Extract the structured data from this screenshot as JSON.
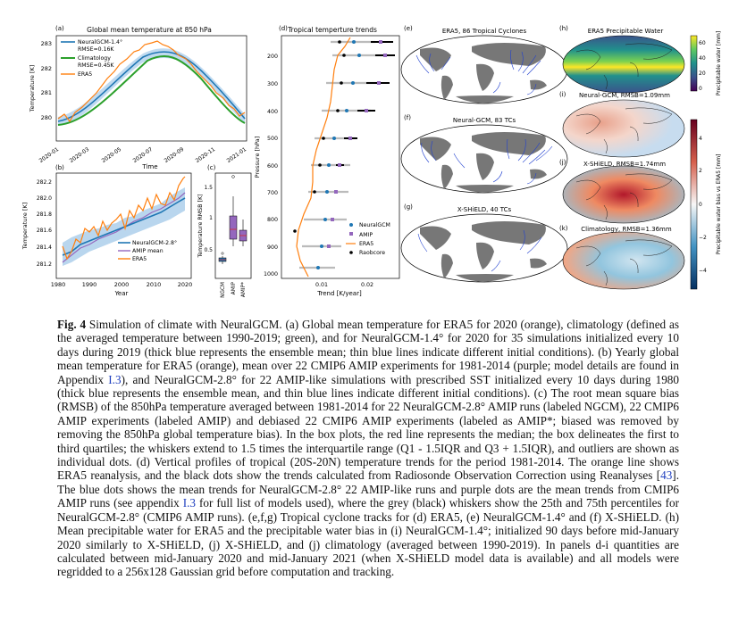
{
  "panels": {
    "a": {
      "letter": "(a)",
      "title": "Global mean temperature at 850 hPa",
      "ylabel": "Temperature [K]",
      "xlabel": "Time",
      "yticks": [
        "280",
        "281",
        "282",
        "283"
      ],
      "xticks": [
        "2020-01",
        "2020-03",
        "2020-05",
        "2020-07",
        "2020-09",
        "2020-11",
        "2021-01"
      ],
      "legend": [
        "NeuralGCM-1.4°",
        "RMSE=0.16K",
        "Climatology",
        "RMSE=0.45K",
        "ERA5"
      ]
    },
    "b": {
      "letter": "(b)",
      "ylabel": "Temperature [K]",
      "xlabel": "Year",
      "yticks": [
        "281.2",
        "281.4",
        "281.6",
        "281.8",
        "282.0",
        "282.2"
      ],
      "xticks": [
        "1980",
        "1990",
        "2000",
        "2010",
        "2020"
      ],
      "legend": [
        "NeuralGCM-2.8°",
        "AMIP mean",
        "ERA5"
      ]
    },
    "c": {
      "letter": "(c)",
      "ylabel": "Temperature RMSB [K]",
      "yticks": [
        "0.5",
        "1",
        "1.5"
      ],
      "xticks": [
        "NGCM",
        "AMIP",
        "AMIP*"
      ]
    },
    "d": {
      "letter": "(d)",
      "title": "Tropical temperture trends",
      "ylabel": "Pressure [hPa]",
      "xlabel": "Trend [K/year]",
      "yticks": [
        "200",
        "300",
        "400",
        "500",
        "600",
        "700",
        "800",
        "900",
        "1000"
      ],
      "xticks": [
        "0.01",
        "0.02"
      ],
      "legend": [
        "NeuralGCM",
        "AMIP",
        "ERA5",
        "Raobcore"
      ]
    },
    "e": {
      "letter": "(e)",
      "title": "ERA5, 86 Tropical Cyclones"
    },
    "f": {
      "letter": "(f)",
      "title": "Neural-GCM, 83 TCs"
    },
    "g": {
      "letter": "(g)",
      "title": "X-SHiELD, 40 TCs"
    },
    "h": {
      "letter": "(h)",
      "title": "ERA5 Precipitable Water",
      "cbar_label": "Precipitable water [mm]",
      "cbar_ticks": [
        "0",
        "20",
        "40",
        "60"
      ]
    },
    "i": {
      "letter": "(i)",
      "title": "Neural-GCM, RMSB=1.09mm"
    },
    "j": {
      "letter": "(j)",
      "title": "X-SHiELD, RMSB=1.74mm"
    },
    "k": {
      "letter": "(k)",
      "title": "Climatology, RMSB=1.36mm"
    },
    "bias_cbar": {
      "label": "Precipitable water bias vs ERA5 [mm]",
      "ticks": [
        "4",
        "2",
        "0",
        "−2",
        "−4"
      ]
    }
  },
  "caption": {
    "fig_label": "Fig. 4",
    "text_1": " Simulation of climate with NeuralGCM. (a) Global mean temperature for ERA5 for 2020 (orange), climatology (defined as the averaged temperature between 1990-2019; green), and for NeuralGCM-1.4° for 2020 for 35 simulations initialized every 10 days during 2019 (thick blue represents the ensemble mean; thin blue lines indicate different initial conditions). (b) Yearly global mean temperature for ERA5 (orange), mean over 22 CMIP6 AMIP experiments for 1981-2014 (purple; model details are found in Appendix ",
    "ref_1": "I.3",
    "text_2": "), and NeuralGCM-2.8° for 22 AMIP-like simulations with prescribed SST initialized every 10 days during 1980 (thick blue represents the ensemble mean, and thin blue lines indicate different initial conditions). (c) The root mean square bias (RMSB) of the 850hPa temperature averaged between 1981-2014 for 22 NeuralGCM-2.8° AMIP runs (labeled NGCM), 22 CMIP6 AMIP experiments (labeled AMIP) and debiased 22 CMIP6 AMIP experiments (labeled as AMIP*; biased was removed by removing the 850hPa global temperature bias). In the box plots, the red line represents the median; the box delineates the first to third quartiles; the whiskers extend to 1.5 times the interquartile range (Q1 - 1.5IQR and Q3 + 1.5IQR), and outliers are shown as individual dots. (d) Vertical profiles of tropical (20S-20N) temperature trends for the period 1981-2014. The orange line shows ERA5 reanalysis, and the black dots show the trends calculated from Radiosonde Observation Correction using Reanalyses [",
    "ref_2": "43",
    "text_3": "]. The blue dots shows the mean trends for NeuralGCM-2.8° 22 AMIP-like runs and purple dots are the mean trends from CMIP6 AMIP runs (see appendix ",
    "ref_3": "I.3",
    "text_4": " for full list of models used), where the grey (black) whiskers show the 25th and 75th percentiles for NeuralGCM-2.8° (CMIP6 AMIP runs). (e,f,g) Tropical cyclone tracks for (d) ERA5, (e) NeuralGCM-1.4° and (f) X-SHiELD. (h) Mean precipitable water for ERA5 and the precipitable water bias in (i) NeuralGCM-1.4°; initialized 90 days before mid-January 2020 similarly to X-SHiELD, (j) X-SHiELD, and (j) climatology (averaged between 1990-2019). In panels d-i quantities are calculated between mid-January 2020 and mid-January 2021 (when X-SHiELD model data is available) and all models were regridded to a 256x128 Gaussian grid before computation and tracking."
  },
  "colors": {
    "ngcm": "#1f77b4",
    "ngcm_thin": "#9ec8ea",
    "era5": "#ff7f0e",
    "clim": "#2ca02c",
    "amip": "#9467bd",
    "link": "#1f3fbf"
  }
}
